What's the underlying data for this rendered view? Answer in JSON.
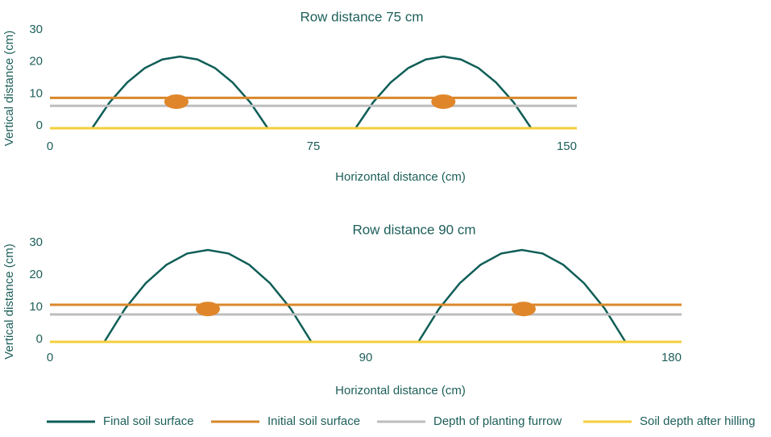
{
  "chart_data": [
    {
      "type": "line",
      "title": "Row distance 75 cm",
      "xlabel": "Horizontal distance (cm)",
      "ylabel": "Vertical distance (cm)",
      "xlim": [
        0,
        150
      ],
      "ylim": [
        0,
        30
      ],
      "xticks": [
        0,
        75,
        150
      ],
      "yticks": [
        0,
        10,
        20,
        30
      ],
      "grid": false,
      "series": [
        {
          "name": "Final soil surface",
          "color": "#0f5e57",
          "x": [
            12,
            17,
            22,
            27,
            32,
            37,
            42,
            47,
            52,
            57,
            62,
            74,
            87,
            92,
            97,
            102,
            107,
            112,
            117,
            122,
            127,
            132,
            137
          ],
          "values": [
            0,
            8.1,
            14.3,
            18.8,
            21.5,
            22.4,
            21.5,
            18.8,
            14.3,
            8.1,
            0,
            null,
            0,
            8.1,
            14.3,
            18.8,
            21.5,
            22.4,
            21.5,
            18.8,
            14.3,
            8.1,
            0
          ]
        },
        {
          "name": "Initial soil surface",
          "color": "#d9872a",
          "x": [
            0,
            150
          ],
          "values": [
            9.5,
            9.5
          ]
        },
        {
          "name": "Depth of planting furrow",
          "color": "#bdbdbd",
          "x": [
            0,
            150
          ],
          "values": [
            7,
            7
          ]
        },
        {
          "name": "Soil depth after hilling",
          "color": "#f5cf3c",
          "x": [
            0,
            150
          ],
          "values": [
            0,
            0
          ]
        }
      ],
      "points": {
        "color": "#e0862a",
        "x": [
          36,
          112
        ],
        "y": [
          8.3,
          8.3
        ]
      }
    },
    {
      "type": "line",
      "title": "Row distance 90 cm",
      "xlabel": "Horizontal distance (cm)",
      "ylabel": "Vertical distance (cm)",
      "xlim": [
        0,
        180
      ],
      "ylim": [
        0,
        30
      ],
      "xticks": [
        0,
        90,
        180
      ],
      "yticks": [
        0,
        10,
        20,
        30
      ],
      "grid": false,
      "series": [
        {
          "name": "Final soil surface",
          "color": "#0f5e57",
          "x": [
            15.5,
            21.4,
            27.3,
            33.2,
            39.1,
            45,
            50.9,
            56.8,
            62.7,
            68.6,
            74.5,
            90,
            105,
            110.9,
            116.8,
            122.7,
            128.6,
            134.5,
            140.4,
            146.3,
            152.2,
            158.1,
            164
          ],
          "values": [
            0,
            10.3,
            18.2,
            23.9,
            27.4,
            28.5,
            27.4,
            23.9,
            18.2,
            10.3,
            0,
            null,
            0,
            10.3,
            18.2,
            23.9,
            27.4,
            28.5,
            27.4,
            23.9,
            18.2,
            10.3,
            0
          ]
        },
        {
          "name": "Initial soil surface",
          "color": "#d9872a",
          "x": [
            0,
            180
          ],
          "values": [
            11.5,
            11.5
          ]
        },
        {
          "name": "Depth of planting furrow",
          "color": "#bdbdbd",
          "x": [
            0,
            180
          ],
          "values": [
            8.5,
            8.5
          ]
        },
        {
          "name": "Soil depth after hilling",
          "color": "#f5cf3c",
          "x": [
            0,
            180
          ],
          "values": [
            0,
            0
          ]
        }
      ],
      "points": {
        "color": "#e0862a",
        "x": [
          45,
          135
        ],
        "y": [
          10.2,
          10.2
        ]
      }
    }
  ],
  "legend": {
    "location": "bottom"
  }
}
